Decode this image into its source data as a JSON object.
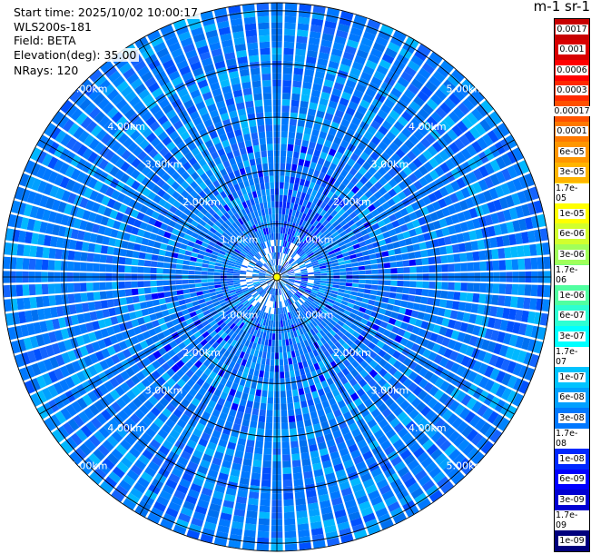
{
  "header": {
    "start_time": "Start time: 2025/10/02 10:00:17",
    "radar": "WLS200s-181",
    "field": "Field: BETA",
    "elevation": "Elevation(deg): 35.00",
    "nrays": "NRays: 120"
  },
  "units_label": "m-1 sr-1",
  "chart_data": {
    "type": "heatmap",
    "projection": "polar-ppi",
    "title": "",
    "range_labels": [
      "1.00km",
      "2.00km",
      "3.00km",
      "4.00km",
      "5.00km"
    ],
    "range_rings_km": [
      1,
      2,
      3,
      4,
      5
    ],
    "max_range_km": 5.15,
    "n_rays": 120,
    "azimuth_spokes_deg": [
      0,
      30,
      60,
      90,
      120,
      150,
      180,
      210,
      240,
      270,
      300,
      330
    ],
    "field": "BETA",
    "colorbar_ticks": [
      "0.0017",
      "0.001",
      "0.0006",
      "0.0003",
      "0.00017",
      "0.0001",
      "6e-05",
      "3e-05",
      "1.7e-05",
      "1e-05",
      "6e-06",
      "3e-06",
      "1.7e-06",
      "1e-06",
      "6e-07",
      "3e-07",
      "1.7e-07",
      "1e-07",
      "6e-08",
      "3e-08",
      "1.7e-08",
      "1e-08",
      "6e-09",
      "3e-09",
      "1.7e-09",
      "1e-09"
    ],
    "colorbar_colors": [
      "#c80000",
      "#d80000",
      "#ff0000",
      "#ff2800",
      "#ff5000",
      "#ff7800",
      "#ff9600",
      "#ffb400",
      "#ffd700",
      "#ffff00",
      "#d2ff2d",
      "#a0ff5a",
      "#78ff78",
      "#50ffa0",
      "#2dffd2",
      "#00ffff",
      "#00e1ff",
      "#00c3ff",
      "#00a0ff",
      "#0078ff",
      "#0050ff",
      "#0028ff",
      "#0000ff",
      "#0000d2",
      "#0000a0",
      "#00007d"
    ],
    "dominant_value": "3e-08"
  }
}
